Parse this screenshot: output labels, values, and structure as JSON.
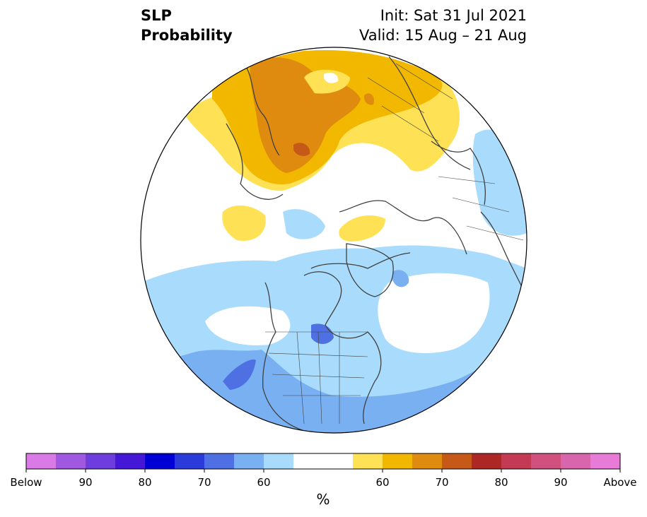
{
  "title": {
    "left_line1": "SLP",
    "left_line2": "Probability",
    "right_line1": "Init: Sat 31 Jul 2021",
    "right_line2": "Valid: 15 Aug – 21 Aug"
  },
  "colorbar": {
    "unit": "%",
    "colors": [
      "#d97ae6",
      "#a158e0",
      "#6e3ddd",
      "#4418d6",
      "#0000d6",
      "#2a3bd9",
      "#4e70e2",
      "#78b0f2",
      "#a9dcfc",
      "#ffffff",
      "#ffffff",
      "#fee154",
      "#f2b800",
      "#df8b10",
      "#c65818",
      "#ad2727",
      "#c43a54",
      "#d0507e",
      "#d966ad",
      "#e87ad8"
    ],
    "tick_labels": [
      "Below",
      "90",
      "80",
      "70",
      "60",
      "60",
      "70",
      "80",
      "90",
      "Above"
    ],
    "tick_indices": [
      0,
      2,
      4,
      6,
      8,
      12,
      14,
      16,
      18,
      20
    ]
  },
  "map": {
    "projection": "north-polar-stereographic",
    "fill_colors": {
      "near_normal": "#ffffff",
      "below_55": "#a9dcfc",
      "below_60": "#78b0f2",
      "below_65": "#4e70e2",
      "above_55": "#fee154",
      "above_60": "#f2b800",
      "above_65": "#df8b10",
      "above_70": "#c65818"
    },
    "coastline_color": "#404040"
  }
}
